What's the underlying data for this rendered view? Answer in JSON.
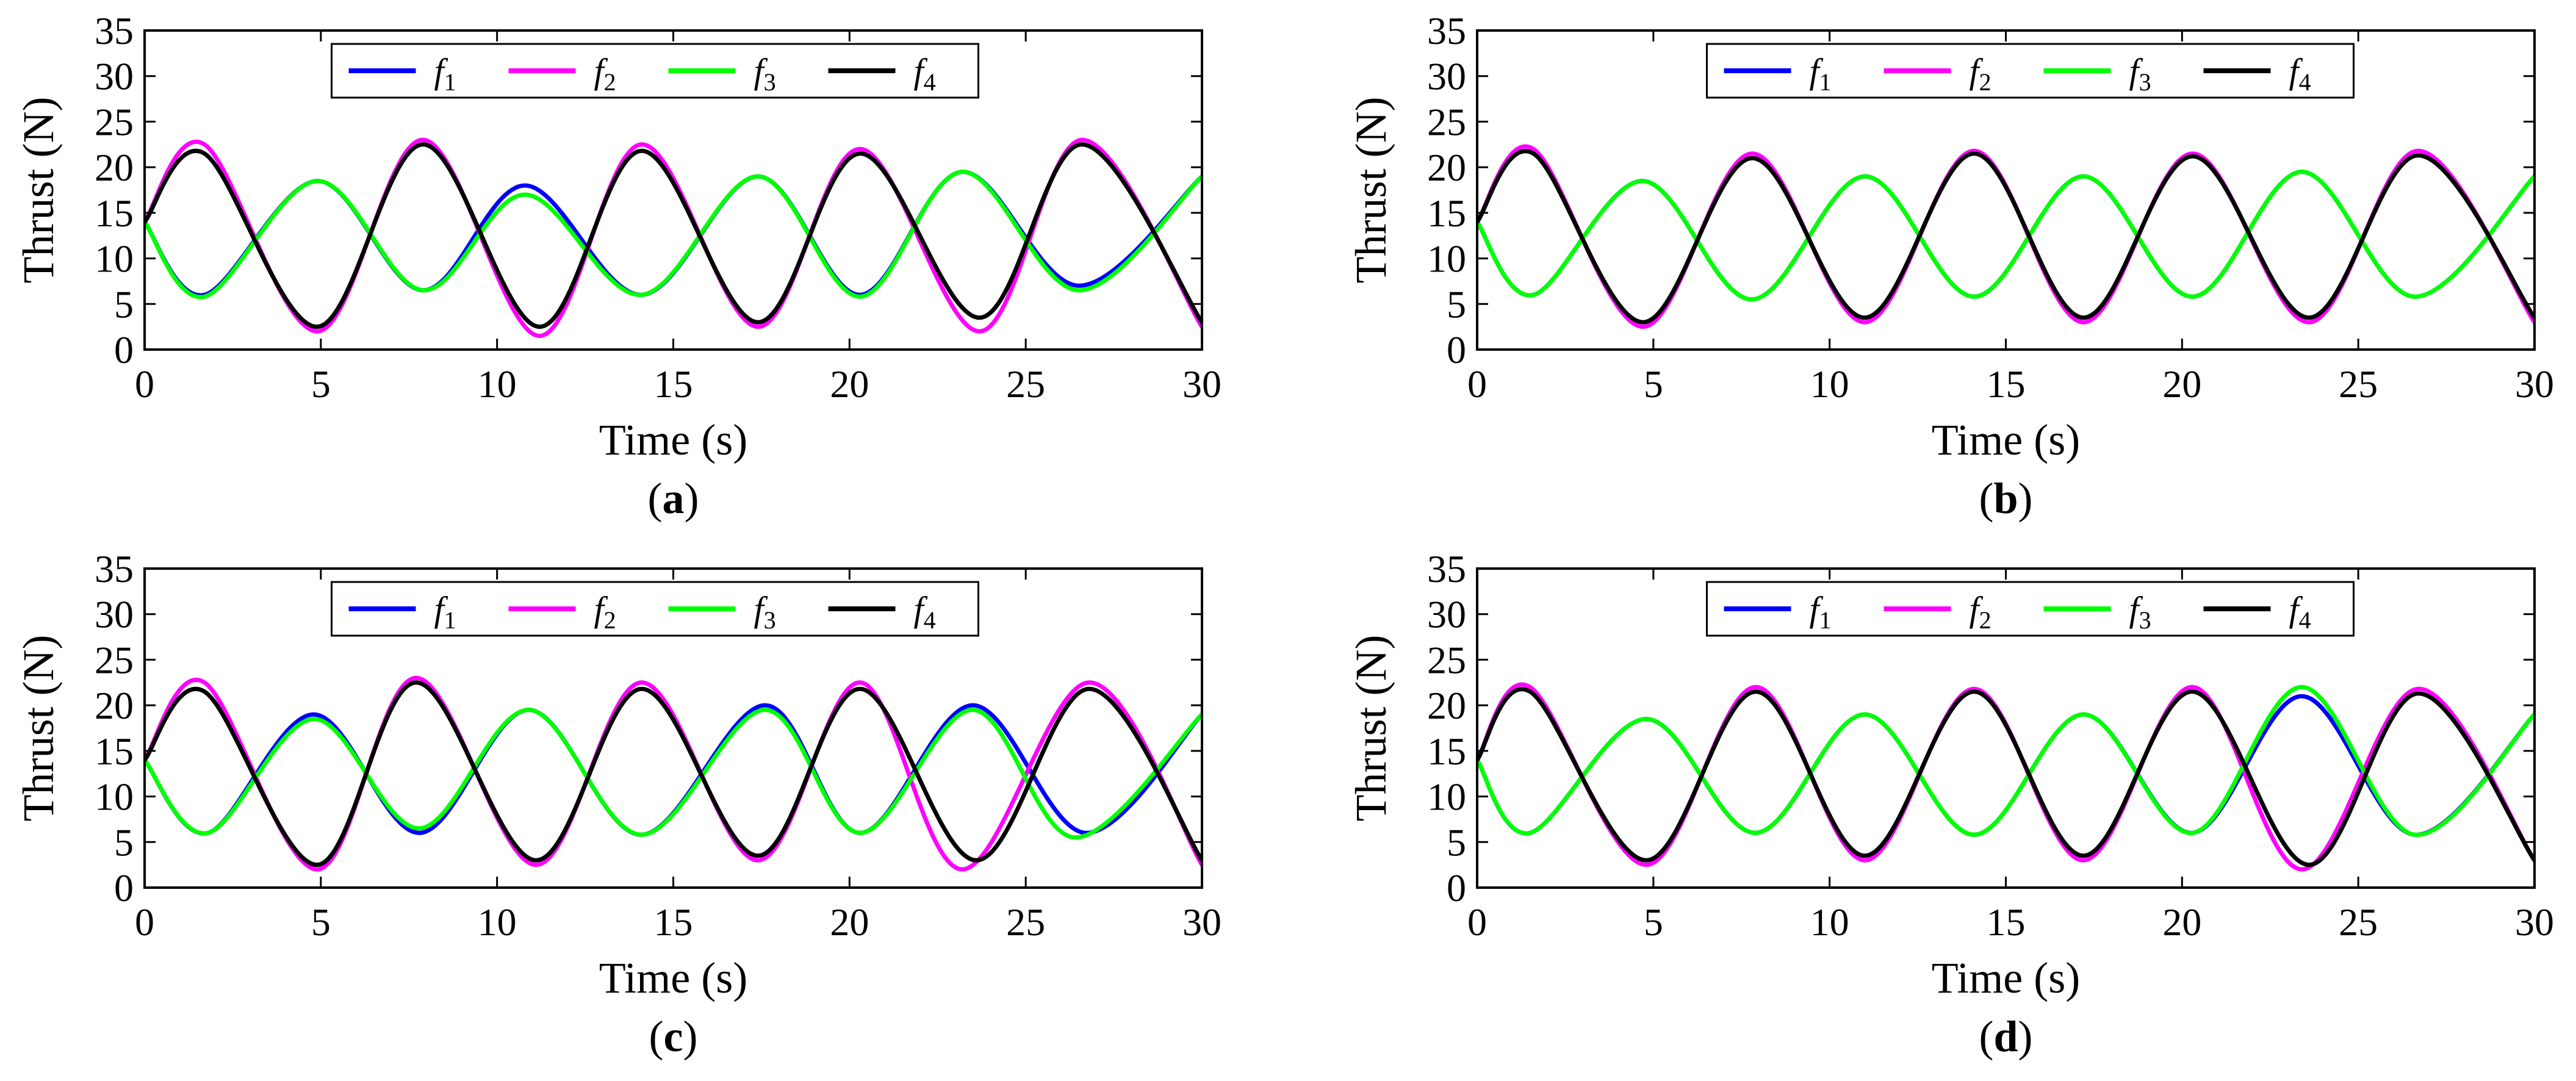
{
  "chart_data": [
    {
      "panel": "a",
      "caption": "(a)",
      "type": "line",
      "xlabel": "Time (s)",
      "ylabel": "Thrust (N)",
      "xlim": [
        0,
        30
      ],
      "ylim": [
        0,
        35
      ],
      "xticks": [
        0,
        5,
        10,
        15,
        20,
        25,
        30
      ],
      "yticks": [
        0,
        5,
        10,
        15,
        20,
        25,
        30,
        35
      ],
      "grid": false,
      "legend_position": "top",
      "series": [
        {
          "name": "f1",
          "color": "#0000ff",
          "x": [
            0,
            1.7,
            4.9,
            7.9,
            10.8,
            14.1,
            17.4,
            20.3,
            23.2,
            26.5,
            30
          ],
          "y": [
            14,
            6,
            18.5,
            6.5,
            18,
            6,
            19,
            6,
            19.5,
            7,
            19
          ]
        },
        {
          "name": "f2",
          "color": "#ff00ff",
          "x": [
            0,
            1.7,
            4.9,
            7.9,
            11.2,
            14.1,
            17.4,
            20.3,
            23.7,
            26.6,
            30
          ],
          "y": [
            14,
            22.5,
            2,
            23,
            1.5,
            22.5,
            2.5,
            22,
            2,
            23,
            2.5
          ]
        },
        {
          "name": "f3",
          "color": "#00ff00",
          "x": [
            0,
            1.7,
            4.9,
            7.9,
            10.8,
            14.1,
            17.4,
            20.3,
            23.2,
            26.5,
            30
          ],
          "y": [
            14,
            5.8,
            18.5,
            6.5,
            17,
            6,
            19,
            5.8,
            19.5,
            6.5,
            19
          ]
        },
        {
          "name": "f4",
          "color": "#000000",
          "x": [
            0,
            1.7,
            4.9,
            7.9,
            11.2,
            14.1,
            17.4,
            20.3,
            23.7,
            26.6,
            30
          ],
          "y": [
            14,
            21.5,
            2.5,
            22.5,
            2.5,
            21.8,
            3,
            21.5,
            3.5,
            22.5,
            3
          ]
        }
      ]
    },
    {
      "panel": "b",
      "caption": "(b)",
      "type": "line",
      "xlabel": "Time (s)",
      "ylabel": "Thrust (N)",
      "xlim": [
        0,
        30
      ],
      "ylim": [
        0,
        35
      ],
      "xticks": [
        0,
        5,
        10,
        15,
        20,
        25,
        30
      ],
      "yticks": [
        0,
        5,
        10,
        15,
        20,
        25,
        30,
        35
      ],
      "grid": false,
      "legend_position": "top",
      "series": [
        {
          "name": "f1",
          "color": "#0000ff",
          "x": [
            0,
            1.6,
            4.7,
            7.8,
            11,
            14.1,
            17.2,
            20.3,
            23.4,
            26.6,
            30
          ],
          "y": [
            14,
            6,
            18.5,
            5.5,
            19,
            5.8,
            19,
            5.8,
            19.5,
            5.8,
            19
          ]
        },
        {
          "name": "f2",
          "color": "#ff00ff",
          "x": [
            0,
            1.6,
            4.7,
            7.8,
            11,
            14.1,
            17.2,
            20.3,
            23.6,
            26.7,
            30
          ],
          "y": [
            14,
            22,
            2.5,
            21.5,
            3,
            21.8,
            3,
            21.5,
            3,
            21.8,
            3
          ]
        },
        {
          "name": "f3",
          "color": "#00ff00",
          "x": [
            0,
            1.6,
            4.7,
            7.8,
            11,
            14.1,
            17.2,
            20.3,
            23.4,
            26.6,
            30
          ],
          "y": [
            14,
            6,
            18.5,
            5.5,
            19,
            5.8,
            19,
            5.8,
            19.5,
            5.8,
            19
          ]
        },
        {
          "name": "f4",
          "color": "#000000",
          "x": [
            0,
            1.6,
            4.7,
            7.8,
            11,
            14.1,
            17.2,
            20.3,
            23.6,
            26.7,
            30
          ],
          "y": [
            14,
            21.5,
            3,
            21,
            3.5,
            21.5,
            3.5,
            21.2,
            3.5,
            21.3,
            3.5
          ]
        }
      ]
    },
    {
      "panel": "c",
      "caption": "(c)",
      "type": "line",
      "xlabel": "Time (s)",
      "ylabel": "Thrust (N)",
      "xlim": [
        0,
        30
      ],
      "ylim": [
        0,
        35
      ],
      "xticks": [
        0,
        5,
        10,
        15,
        20,
        25,
        30
      ],
      "yticks": [
        0,
        5,
        10,
        15,
        20,
        25,
        30,
        35
      ],
      "grid": false,
      "legend_position": "top",
      "series": [
        {
          "name": "f1",
          "color": "#0000ff",
          "x": [
            0,
            1.8,
            4.8,
            7.8,
            10.9,
            14.1,
            17.6,
            20.3,
            23.5,
            26.7,
            30
          ],
          "y": [
            14,
            6,
            19,
            6,
            19.5,
            5.8,
            20,
            6,
            20,
            6,
            19
          ]
        },
        {
          "name": "f2",
          "color": "#ff00ff",
          "x": [
            0,
            1.7,
            4.9,
            7.7,
            11.1,
            14.1,
            17.4,
            20.3,
            23.2,
            26.8,
            30
          ],
          "y": [
            14,
            22.5,
            2,
            23,
            2.5,
            22.5,
            3,
            22.5,
            2,
            22.5,
            2.5
          ]
        },
        {
          "name": "f3",
          "color": "#00ff00",
          "x": [
            0,
            1.8,
            4.8,
            7.8,
            10.9,
            14.1,
            17.6,
            20.3,
            23.5,
            26.4,
            30
          ],
          "y": [
            14,
            6,
            18.5,
            6.5,
            19.5,
            5.8,
            19.5,
            6,
            19.5,
            5.5,
            19
          ]
        },
        {
          "name": "f4",
          "color": "#000000",
          "x": [
            0,
            1.7,
            4.9,
            7.7,
            11.1,
            14.1,
            17.4,
            20.3,
            23.6,
            26.8,
            30
          ],
          "y": [
            14,
            21.5,
            2.5,
            22.5,
            3,
            21.8,
            3.5,
            21.8,
            3,
            21.8,
            3
          ]
        }
      ]
    },
    {
      "panel": "d",
      "caption": "(d)",
      "type": "line",
      "xlabel": "Time (s)",
      "ylabel": "Thrust (N)",
      "xlim": [
        0,
        30
      ],
      "ylim": [
        0,
        35
      ],
      "xticks": [
        0,
        5,
        10,
        15,
        20,
        25,
        30
      ],
      "yticks": [
        0,
        5,
        10,
        15,
        20,
        25,
        30,
        35
      ],
      "grid": false,
      "legend_position": "top",
      "series": [
        {
          "name": "f1",
          "color": "#0000ff",
          "x": [
            0,
            1.5,
            4.8,
            7.9,
            11,
            14.1,
            17.2,
            20.3,
            23.4,
            26.6,
            30
          ],
          "y": [
            14,
            6,
            18.5,
            6,
            19,
            5.8,
            19,
            6,
            21,
            5.8,
            19
          ]
        },
        {
          "name": "f2",
          "color": "#ff00ff",
          "x": [
            0,
            1.5,
            4.8,
            7.9,
            11,
            14.1,
            17.2,
            20.3,
            23.4,
            26.7,
            30
          ],
          "y": [
            14,
            22,
            2.5,
            22,
            3,
            21.8,
            3,
            22,
            2,
            21.8,
            3
          ]
        },
        {
          "name": "f3",
          "color": "#00ff00",
          "x": [
            0,
            1.5,
            4.8,
            7.9,
            11,
            14.1,
            17.2,
            20.3,
            23.4,
            26.6,
            30
          ],
          "y": [
            14,
            6,
            18.5,
            6,
            19,
            5.8,
            19,
            6,
            22,
            5.8,
            19
          ]
        },
        {
          "name": "f4",
          "color": "#000000",
          "x": [
            0,
            1.5,
            4.8,
            7.9,
            11,
            14.1,
            17.2,
            20.3,
            23.6,
            26.7,
            30
          ],
          "y": [
            14,
            21.5,
            3,
            21.5,
            3.5,
            21.5,
            3.5,
            21.5,
            2.5,
            21.3,
            3
          ]
        }
      ]
    }
  ]
}
